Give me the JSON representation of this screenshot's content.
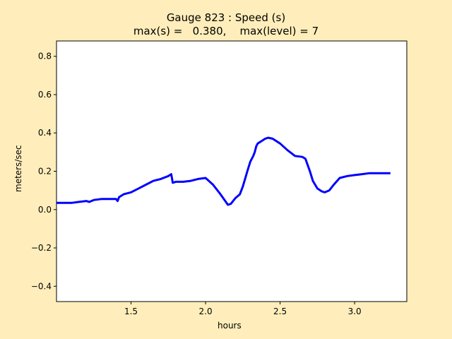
{
  "chart_data": {
    "type": "line",
    "title": "Gauge 823 : Speed (s)",
    "subtitle": "max(s) =   0.380,    max(level) = 7",
    "xlabel": "hours",
    "ylabel": "meters/sec",
    "xlim": [
      1.0,
      3.35
    ],
    "ylim": [
      -0.48,
      0.88
    ],
    "xticks": [
      1.5,
      2.0,
      2.5,
      3.0
    ],
    "xtick_labels": [
      "1.5",
      "2.0",
      "2.5",
      "3.0"
    ],
    "yticks": [
      -0.4,
      -0.2,
      0.0,
      0.2,
      0.4,
      0.6,
      0.8
    ],
    "ytick_labels": [
      "−0.4",
      "−0.2",
      "0.0",
      "0.2",
      "0.4",
      "0.6",
      "0.8"
    ],
    "grid": false,
    "series": [
      {
        "color": "#0000ff",
        "x": [
          1.0,
          1.05,
          1.1,
          1.15,
          1.2,
          1.22,
          1.25,
          1.3,
          1.35,
          1.4,
          1.41,
          1.42,
          1.45,
          1.5,
          1.55,
          1.6,
          1.65,
          1.7,
          1.75,
          1.77,
          1.78,
          1.8,
          1.85,
          1.9,
          1.95,
          2.0,
          2.05,
          2.1,
          2.15,
          2.17,
          2.2,
          2.23,
          2.25,
          2.28,
          2.3,
          2.32,
          2.33,
          2.34,
          2.35,
          2.38,
          2.4,
          2.42,
          2.45,
          2.5,
          2.55,
          2.6,
          2.65,
          2.67,
          2.7,
          2.72,
          2.75,
          2.78,
          2.8,
          2.83,
          2.86,
          2.9,
          2.95,
          3.0,
          3.05,
          3.1,
          3.15,
          3.2,
          3.24
        ],
        "y": [
          0.035,
          0.035,
          0.035,
          0.04,
          0.045,
          0.04,
          0.05,
          0.055,
          0.055,
          0.055,
          0.045,
          0.065,
          0.08,
          0.09,
          0.11,
          0.13,
          0.15,
          0.16,
          0.175,
          0.185,
          0.14,
          0.145,
          0.145,
          0.15,
          0.16,
          0.165,
          0.13,
          0.08,
          0.025,
          0.03,
          0.06,
          0.08,
          0.12,
          0.2,
          0.25,
          0.28,
          0.3,
          0.33,
          0.345,
          0.36,
          0.37,
          0.375,
          0.37,
          0.345,
          0.31,
          0.28,
          0.275,
          0.265,
          0.2,
          0.15,
          0.11,
          0.095,
          0.09,
          0.1,
          0.13,
          0.165,
          0.175,
          0.18,
          0.185,
          0.19,
          0.19,
          0.19,
          0.19
        ]
      }
    ]
  }
}
